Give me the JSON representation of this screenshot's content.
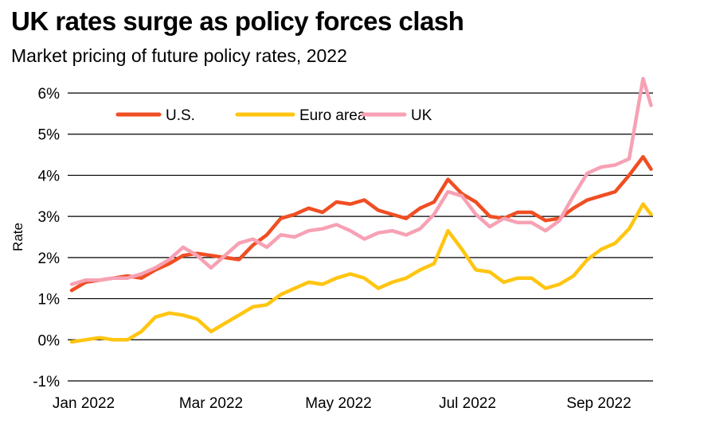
{
  "header": {
    "title": "UK rates surge as policy forces clash",
    "subtitle": "Market pricing of future policy rates, 2022"
  },
  "chart_data": {
    "type": "line",
    "title": "UK rates surge as policy forces clash",
    "subtitle": "Market pricing of future policy rates, 2022",
    "xlabel": "",
    "ylabel": "Rate",
    "x_ticks": [
      "Jan 2022",
      "Mar 2022",
      "May 2022",
      "Jul 2022",
      "Sep 2022"
    ],
    "y_ticks": [
      "-1%",
      "0%",
      "1%",
      "2%",
      "3%",
      "4%",
      "5%",
      "6%"
    ],
    "ylim": [
      -1,
      6
    ],
    "grid": "horizontal",
    "legend_position": "top-left",
    "series": [
      {
        "name": "U.S.",
        "color": "#f04e23",
        "points": [
          [
            "2022-01-03",
            1.2
          ],
          [
            "2022-01-10",
            1.4
          ],
          [
            "2022-01-17",
            1.45
          ],
          [
            "2022-01-24",
            1.5
          ],
          [
            "2022-01-31",
            1.55
          ],
          [
            "2022-02-07",
            1.5
          ],
          [
            "2022-02-14",
            1.7
          ],
          [
            "2022-02-21",
            1.85
          ],
          [
            "2022-02-28",
            2.05
          ],
          [
            "2022-03-07",
            2.1
          ],
          [
            "2022-03-14",
            2.05
          ],
          [
            "2022-03-21",
            2.0
          ],
          [
            "2022-03-28",
            1.95
          ],
          [
            "2022-04-04",
            2.3
          ],
          [
            "2022-04-11",
            2.55
          ],
          [
            "2022-04-18",
            2.95
          ],
          [
            "2022-04-25",
            3.05
          ],
          [
            "2022-05-02",
            3.2
          ],
          [
            "2022-05-09",
            3.1
          ],
          [
            "2022-05-16",
            3.35
          ],
          [
            "2022-05-23",
            3.3
          ],
          [
            "2022-05-30",
            3.4
          ],
          [
            "2022-06-06",
            3.15
          ],
          [
            "2022-06-13",
            3.05
          ],
          [
            "2022-06-20",
            2.95
          ],
          [
            "2022-06-27",
            3.2
          ],
          [
            "2022-07-04",
            3.35
          ],
          [
            "2022-07-11",
            3.9
          ],
          [
            "2022-07-18",
            3.55
          ],
          [
            "2022-07-25",
            3.35
          ],
          [
            "2022-08-01",
            3.0
          ],
          [
            "2022-08-08",
            2.95
          ],
          [
            "2022-08-15",
            3.1
          ],
          [
            "2022-08-22",
            3.1
          ],
          [
            "2022-08-29",
            2.9
          ],
          [
            "2022-09-05",
            2.95
          ],
          [
            "2022-09-12",
            3.2
          ],
          [
            "2022-09-19",
            3.4
          ],
          [
            "2022-09-26",
            3.5
          ],
          [
            "2022-10-03",
            3.6
          ],
          [
            "2022-10-10",
            4.0
          ],
          [
            "2022-10-17",
            4.45
          ],
          [
            "2022-10-21",
            4.15
          ]
        ]
      },
      {
        "name": "Euro area",
        "color": "#ffc510",
        "points": [
          [
            "2022-01-03",
            -0.05
          ],
          [
            "2022-01-10",
            0.0
          ],
          [
            "2022-01-17",
            0.05
          ],
          [
            "2022-01-24",
            0.0
          ],
          [
            "2022-01-31",
            0.0
          ],
          [
            "2022-02-07",
            0.2
          ],
          [
            "2022-02-14",
            0.55
          ],
          [
            "2022-02-21",
            0.65
          ],
          [
            "2022-02-28",
            0.6
          ],
          [
            "2022-03-07",
            0.5
          ],
          [
            "2022-03-14",
            0.2
          ],
          [
            "2022-03-21",
            0.4
          ],
          [
            "2022-03-28",
            0.6
          ],
          [
            "2022-04-04",
            0.8
          ],
          [
            "2022-04-11",
            0.85
          ],
          [
            "2022-04-18",
            1.1
          ],
          [
            "2022-04-25",
            1.25
          ],
          [
            "2022-05-02",
            1.4
          ],
          [
            "2022-05-09",
            1.35
          ],
          [
            "2022-05-16",
            1.5
          ],
          [
            "2022-05-23",
            1.6
          ],
          [
            "2022-05-30",
            1.5
          ],
          [
            "2022-06-06",
            1.25
          ],
          [
            "2022-06-13",
            1.4
          ],
          [
            "2022-06-20",
            1.5
          ],
          [
            "2022-06-27",
            1.7
          ],
          [
            "2022-07-04",
            1.85
          ],
          [
            "2022-07-11",
            2.65
          ],
          [
            "2022-07-18",
            2.2
          ],
          [
            "2022-07-25",
            1.7
          ],
          [
            "2022-08-01",
            1.65
          ],
          [
            "2022-08-08",
            1.4
          ],
          [
            "2022-08-15",
            1.5
          ],
          [
            "2022-08-22",
            1.5
          ],
          [
            "2022-08-29",
            1.25
          ],
          [
            "2022-09-05",
            1.35
          ],
          [
            "2022-09-12",
            1.55
          ],
          [
            "2022-09-19",
            1.95
          ],
          [
            "2022-09-26",
            2.2
          ],
          [
            "2022-10-03",
            2.35
          ],
          [
            "2022-10-10",
            2.7
          ],
          [
            "2022-10-17",
            3.3
          ],
          [
            "2022-10-21",
            3.05
          ]
        ]
      },
      {
        "name": "UK",
        "color": "#f7a1b4",
        "points": [
          [
            "2022-01-03",
            1.35
          ],
          [
            "2022-01-10",
            1.45
          ],
          [
            "2022-01-17",
            1.45
          ],
          [
            "2022-01-24",
            1.5
          ],
          [
            "2022-01-31",
            1.5
          ],
          [
            "2022-02-07",
            1.6
          ],
          [
            "2022-02-14",
            1.75
          ],
          [
            "2022-02-21",
            1.95
          ],
          [
            "2022-02-28",
            2.25
          ],
          [
            "2022-03-07",
            2.05
          ],
          [
            "2022-03-14",
            1.75
          ],
          [
            "2022-03-21",
            2.05
          ],
          [
            "2022-03-28",
            2.35
          ],
          [
            "2022-04-04",
            2.45
          ],
          [
            "2022-04-11",
            2.25
          ],
          [
            "2022-04-18",
            2.55
          ],
          [
            "2022-04-25",
            2.5
          ],
          [
            "2022-05-02",
            2.65
          ],
          [
            "2022-05-09",
            2.7
          ],
          [
            "2022-05-16",
            2.8
          ],
          [
            "2022-05-23",
            2.65
          ],
          [
            "2022-05-30",
            2.45
          ],
          [
            "2022-06-06",
            2.6
          ],
          [
            "2022-06-13",
            2.65
          ],
          [
            "2022-06-20",
            2.55
          ],
          [
            "2022-06-27",
            2.7
          ],
          [
            "2022-07-04",
            3.05
          ],
          [
            "2022-07-11",
            3.6
          ],
          [
            "2022-07-18",
            3.5
          ],
          [
            "2022-07-25",
            3.05
          ],
          [
            "2022-08-01",
            2.75
          ],
          [
            "2022-08-08",
            2.95
          ],
          [
            "2022-08-15",
            2.85
          ],
          [
            "2022-08-22",
            2.85
          ],
          [
            "2022-08-29",
            2.65
          ],
          [
            "2022-09-05",
            2.9
          ],
          [
            "2022-09-12",
            3.5
          ],
          [
            "2022-09-19",
            4.05
          ],
          [
            "2022-09-26",
            4.2
          ],
          [
            "2022-10-03",
            4.25
          ],
          [
            "2022-10-10",
            4.4
          ],
          [
            "2022-10-17",
            6.35
          ],
          [
            "2022-10-21",
            5.7
          ]
        ]
      }
    ]
  }
}
